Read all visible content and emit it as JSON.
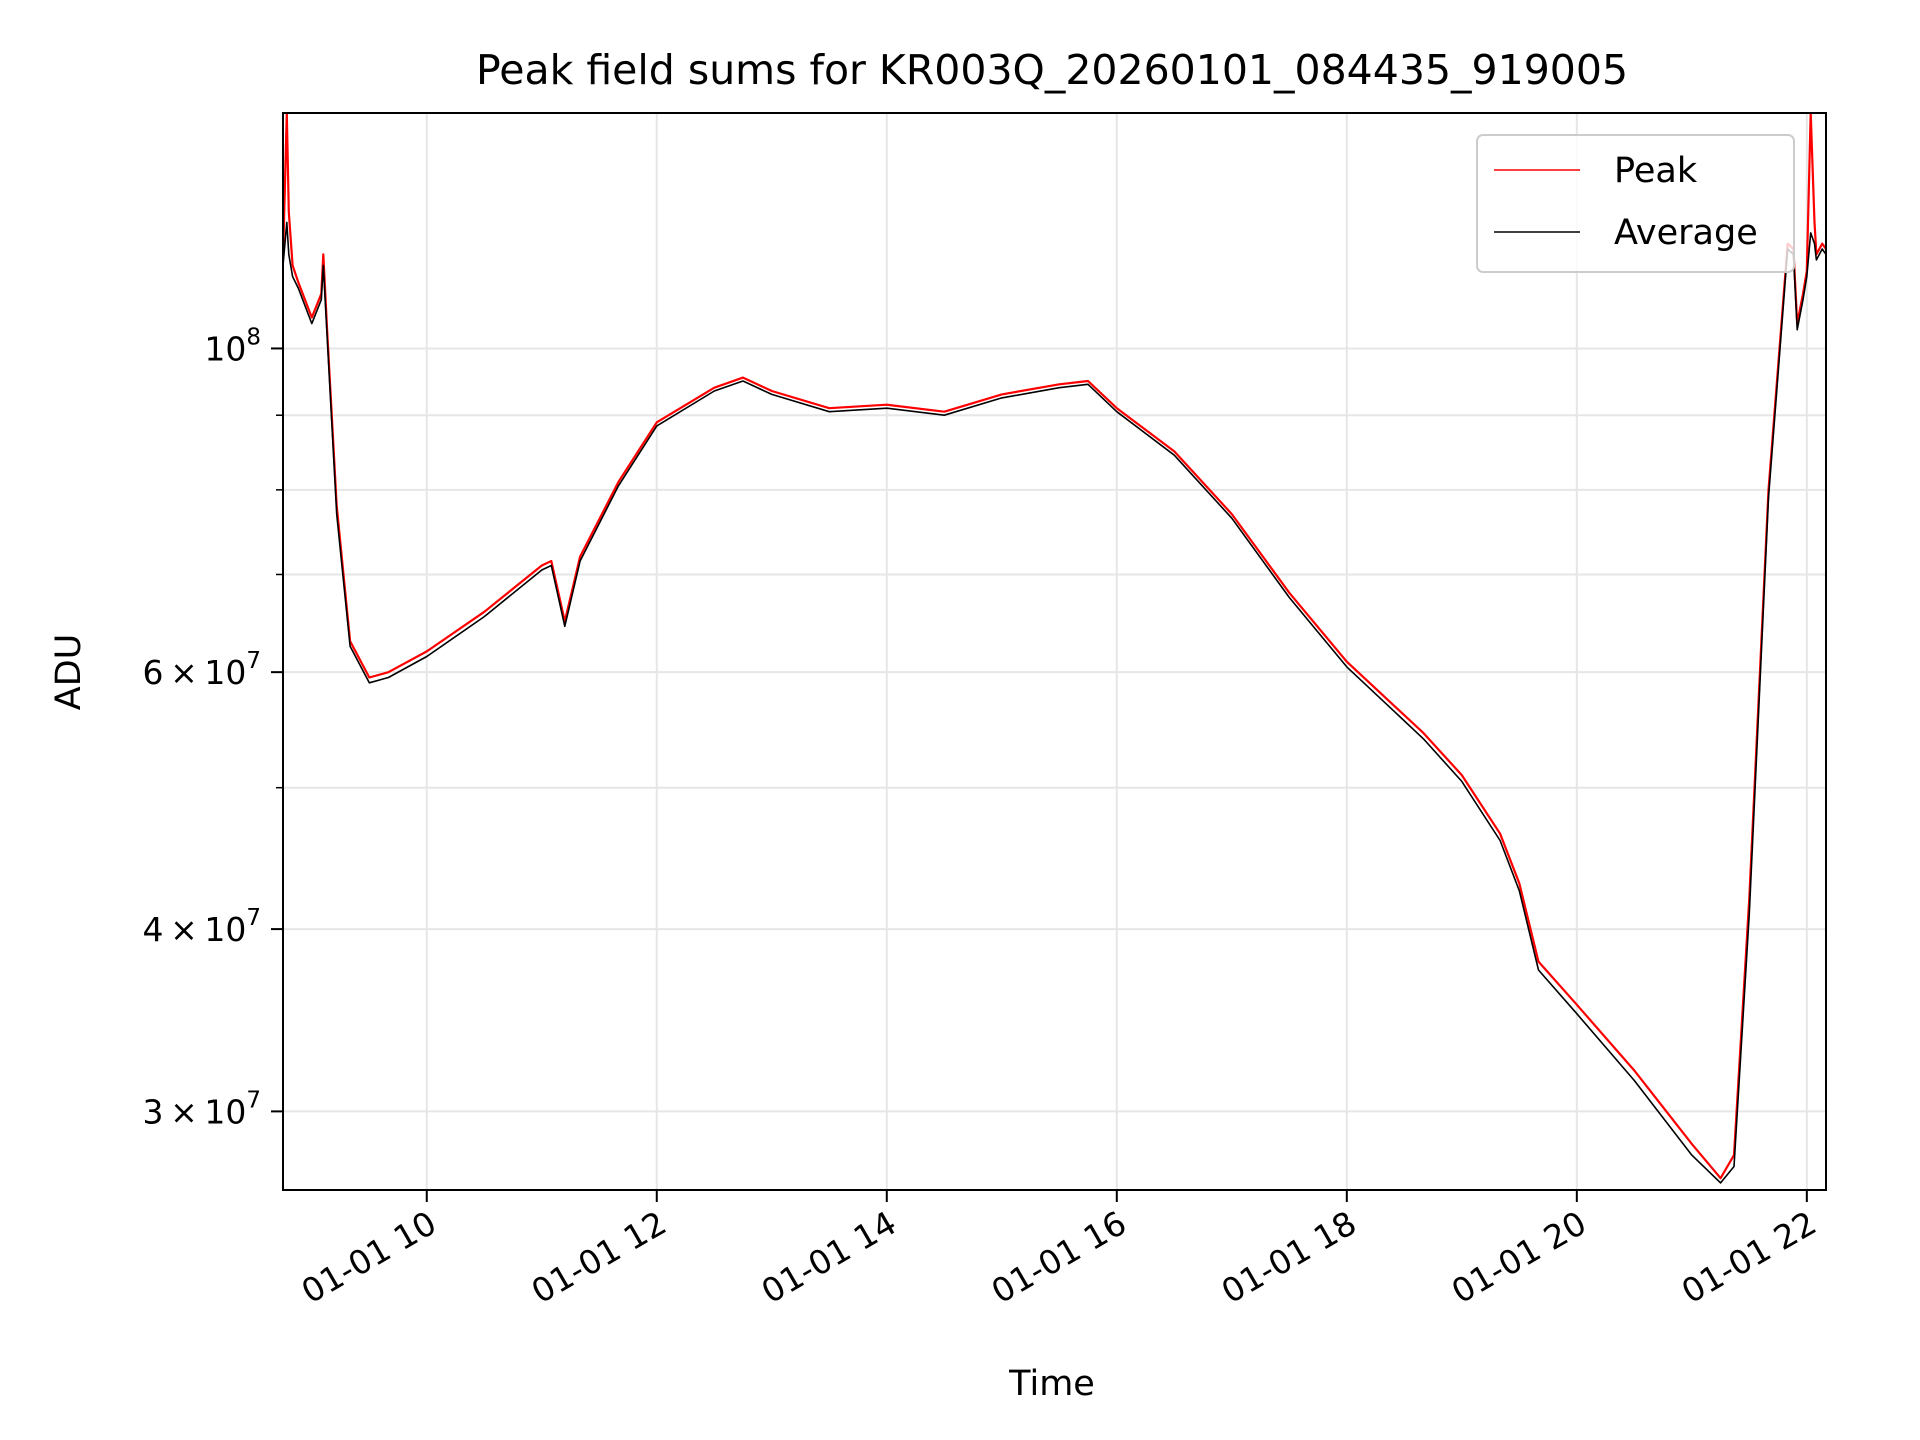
{
  "chart_data": {
    "type": "line",
    "title": "Peak field sums for KR003Q_20260101_084435_919005",
    "xlabel": "Time",
    "ylabel": "ADU",
    "yscale": "log",
    "xlim": [
      "2026-01-01 08:45",
      "2026-01-01 22:10"
    ],
    "ylim": [
      26500000,
      145000000
    ],
    "x_ticks": [
      "01-01 10",
      "01-01 12",
      "01-01 14",
      "01-01 16",
      "01-01 18",
      "01-01 20",
      "01-01 22"
    ],
    "x_tick_values": [
      "2026-01-01 10:00",
      "2026-01-01 12:00",
      "2026-01-01 14:00",
      "2026-01-01 16:00",
      "2026-01-01 18:00",
      "2026-01-01 20:00",
      "2026-01-01 22:00"
    ],
    "y_ticks": [
      {
        "value": 100000000,
        "mantissa": "",
        "exponent": "8"
      },
      {
        "value": 60000000,
        "mantissa": "6",
        "exponent": "7"
      },
      {
        "value": 40000000,
        "mantissa": "4",
        "exponent": "7"
      },
      {
        "value": 30000000,
        "mantissa": "3",
        "exponent": "7"
      }
    ],
    "y_minor_grid": [
      50000000,
      70000000,
      80000000,
      90000000
    ],
    "grid": true,
    "legend_position": "upper right",
    "series": [
      {
        "name": "Peak",
        "color": "#ff0000",
        "x": [
          "2026-01-01 08:45",
          "2026-01-01 08:47",
          "2026-01-01 08:48",
          "2026-01-01 08:50",
          "2026-01-01 08:53",
          "2026-01-01 09:00",
          "2026-01-01 09:05",
          "2026-01-01 09:06",
          "2026-01-01 09:08",
          "2026-01-01 09:13",
          "2026-01-01 09:20",
          "2026-01-01 09:30",
          "2026-01-01 09:40",
          "2026-01-01 10:00",
          "2026-01-01 10:30",
          "2026-01-01 11:00",
          "2026-01-01 11:05",
          "2026-01-01 11:12",
          "2026-01-01 11:20",
          "2026-01-01 11:40",
          "2026-01-01 12:00",
          "2026-01-01 12:30",
          "2026-01-01 12:45",
          "2026-01-01 13:00",
          "2026-01-01 13:30",
          "2026-01-01 14:00",
          "2026-01-01 14:30",
          "2026-01-01 15:00",
          "2026-01-01 15:30",
          "2026-01-01 15:45",
          "2026-01-01 16:00",
          "2026-01-01 16:30",
          "2026-01-01 17:00",
          "2026-01-01 17:30",
          "2026-01-01 18:00",
          "2026-01-01 18:40",
          "2026-01-01 19:00",
          "2026-01-01 19:20",
          "2026-01-01 19:30",
          "2026-01-01 19:40",
          "2026-01-01 20:00",
          "2026-01-01 20:30",
          "2026-01-01 21:00",
          "2026-01-01 21:15",
          "2026-01-01 21:22",
          "2026-01-01 21:30",
          "2026-01-01 21:40",
          "2026-01-01 21:50",
          "2026-01-01 21:53",
          "2026-01-01 21:55",
          "2026-01-01 21:58",
          "2026-01-01 22:00",
          "2026-01-01 22:02",
          "2026-01-01 22:04",
          "2026-01-01 22:05",
          "2026-01-01 22:08",
          "2026-01-01 22:10"
        ],
        "y": [
          115000000,
          145000000,
          124000000,
          114000000,
          111000000,
          105000000,
          109000000,
          116000000,
          103000000,
          78000000,
          63000000,
          59500000,
          60000000,
          62000000,
          66000000,
          71000000,
          71500000,
          65000000,
          72000000,
          81000000,
          89000000,
          94000000,
          95500000,
          93500000,
          91000000,
          91500000,
          90500000,
          93000000,
          94500000,
          95000000,
          91000000,
          85000000,
          77000000,
          68000000,
          61000000,
          54500000,
          51000000,
          46500000,
          43000000,
          38000000,
          35500000,
          32000000,
          28500000,
          27000000,
          28000000,
          42000000,
          80000000,
          118000000,
          117000000,
          104000000,
          109000000,
          113000000,
          145000000,
          122000000,
          116000000,
          118000000,
          117000000
        ]
      },
      {
        "name": "Average",
        "color": "#000000",
        "x": [
          "2026-01-01 08:45",
          "2026-01-01 08:47",
          "2026-01-01 08:48",
          "2026-01-01 08:50",
          "2026-01-01 08:53",
          "2026-01-01 09:00",
          "2026-01-01 09:05",
          "2026-01-01 09:06",
          "2026-01-01 09:08",
          "2026-01-01 09:13",
          "2026-01-01 09:20",
          "2026-01-01 09:30",
          "2026-01-01 09:40",
          "2026-01-01 10:00",
          "2026-01-01 10:30",
          "2026-01-01 11:00",
          "2026-01-01 11:05",
          "2026-01-01 11:12",
          "2026-01-01 11:20",
          "2026-01-01 11:40",
          "2026-01-01 12:00",
          "2026-01-01 12:30",
          "2026-01-01 12:45",
          "2026-01-01 13:00",
          "2026-01-01 13:30",
          "2026-01-01 14:00",
          "2026-01-01 14:30",
          "2026-01-01 15:00",
          "2026-01-01 15:30",
          "2026-01-01 15:45",
          "2026-01-01 16:00",
          "2026-01-01 16:30",
          "2026-01-01 17:00",
          "2026-01-01 17:30",
          "2026-01-01 18:00",
          "2026-01-01 18:40",
          "2026-01-01 19:00",
          "2026-01-01 19:20",
          "2026-01-01 19:30",
          "2026-01-01 19:40",
          "2026-01-01 20:00",
          "2026-01-01 20:30",
          "2026-01-01 21:00",
          "2026-01-01 21:15",
          "2026-01-01 21:22",
          "2026-01-01 21:30",
          "2026-01-01 21:40",
          "2026-01-01 21:50",
          "2026-01-01 21:53",
          "2026-01-01 21:55",
          "2026-01-01 21:58",
          "2026-01-01 22:00",
          "2026-01-01 22:02",
          "2026-01-01 22:04",
          "2026-01-01 22:05",
          "2026-01-01 22:08",
          "2026-01-01 22:10"
        ],
        "y": [
          114000000,
          122000000,
          116000000,
          112000000,
          110000000,
          104000000,
          108000000,
          114000000,
          102000000,
          77000000,
          62500000,
          59000000,
          59500000,
          61500000,
          65500000,
          70500000,
          71000000,
          64500000,
          71500000,
          80500000,
          88500000,
          93500000,
          95000000,
          93000000,
          90500000,
          91000000,
          90000000,
          92500000,
          94000000,
          94500000,
          90500000,
          84500000,
          76500000,
          67500000,
          60500000,
          54000000,
          50500000,
          46000000,
          42500000,
          37500000,
          35000000,
          31500000,
          28000000,
          26800000,
          27500000,
          41000000,
          79000000,
          117000000,
          116000000,
          103000000,
          108000000,
          112000000,
          120000000,
          118000000,
          115000000,
          117000000,
          116000000
        ]
      }
    ]
  }
}
